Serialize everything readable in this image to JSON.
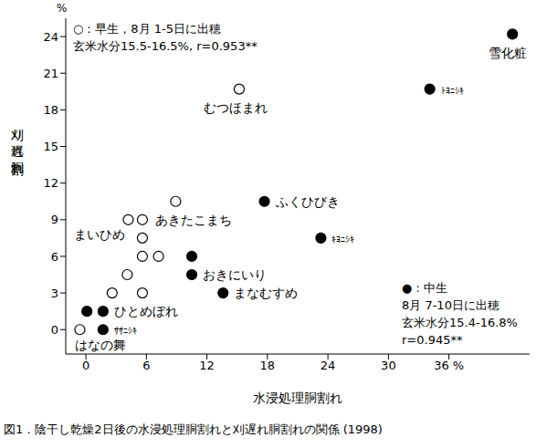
{
  "chart_data": {
    "type": "scatter",
    "title": "図1．陰干し乾燥2日後の水浸処理胴割れと刈遅れ胴割れの関係 (1998)",
    "x_label": "水浸処理胴割れ",
    "y_label": "刈り遅れ胴割れ",
    "y_unit_label": "%",
    "xlim": [
      -2,
      44
    ],
    "ylim": [
      -2,
      25.5
    ],
    "xticks": [
      0,
      6,
      12,
      18,
      24,
      30,
      {
        "value": 36,
        "label": "36 %"
      }
    ],
    "yticks": [
      0,
      3,
      6,
      9,
      12,
      15,
      18,
      21,
      24
    ],
    "grid": false,
    "series": [
      {
        "color": "#000000",
        "marker": "open",
        "description": [
          "○：早生，8月 1-5日に出穂",
          "玄米水分15.5-16.5%, r=0.953**"
        ],
        "x": [
          -0.6,
          2.6,
          4.1,
          5.6,
          5.6,
          7.2,
          5.6,
          4.2,
          5.6,
          8.9,
          15.2
        ],
        "y": [
          0,
          3,
          4.5,
          3,
          6,
          6,
          7.5,
          9,
          9,
          10.5,
          19.7
        ],
        "labels": [
          "はなの舞",
          null,
          null,
          null,
          null,
          null,
          null,
          "まいひめ",
          "あきたこまち",
          null,
          "むつほまれ"
        ]
      },
      {
        "color": "#000000",
        "marker": "filled",
        "description": [
          "● : 中生",
          "8月 7-10日に出穂",
          "玄米水分15.4-16.8%",
          "r=0.945**"
        ],
        "x": [
          0.1,
          1.7,
          1.7,
          10.5,
          10.5,
          13.6,
          17.7,
          23.3,
          34.1,
          42.3
        ],
        "y": [
          1.5,
          1.5,
          0,
          6,
          4.5,
          3,
          10.5,
          7.5,
          19.7,
          24.2
        ],
        "labels": [
          null,
          "ひとめぼれ",
          "ｻｻﾆｼｷ",
          null,
          "おきにいり",
          "まなむすめ",
          "ふくひびき",
          "ｷﾖﾆｼｷ",
          "ﾄﾖﾆｼｷ",
          "雪化粧"
        ]
      }
    ]
  }
}
